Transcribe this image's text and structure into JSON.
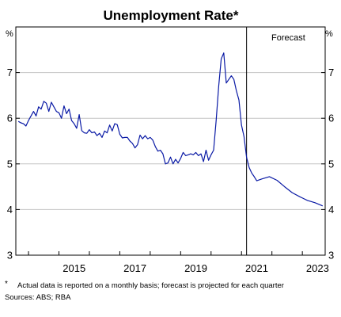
{
  "chart_data": {
    "type": "line",
    "title": "Unemployment Rate*",
    "y_unit_left": "%",
    "y_unit_right": "%",
    "ylim": [
      3,
      8
    ],
    "yticks": [
      3,
      4,
      5,
      6,
      7
    ],
    "x_range": [
      "2013-08",
      "2023-10"
    ],
    "xticks": [
      "2015",
      "2017",
      "2019",
      "2021",
      "2023"
    ],
    "forecast_start": "2021-03",
    "forecast_label": "Forecast",
    "grid": true,
    "series": [
      {
        "color": "#0a1aa5",
        "data": [
          [
            "2013-09",
            5.93
          ],
          [
            "2013-10",
            5.9
          ],
          [
            "2013-11",
            5.88
          ],
          [
            "2013-12",
            5.83
          ],
          [
            "2014-01",
            5.95
          ],
          [
            "2014-02",
            6.05
          ],
          [
            "2014-03",
            6.15
          ],
          [
            "2014-04",
            6.05
          ],
          [
            "2014-05",
            6.25
          ],
          [
            "2014-06",
            6.2
          ],
          [
            "2014-07",
            6.37
          ],
          [
            "2014-08",
            6.33
          ],
          [
            "2014-09",
            6.15
          ],
          [
            "2014-10",
            6.35
          ],
          [
            "2014-11",
            6.25
          ],
          [
            "2014-12",
            6.15
          ],
          [
            "2015-01",
            6.12
          ],
          [
            "2015-02",
            6.0
          ],
          [
            "2015-03",
            6.27
          ],
          [
            "2015-04",
            6.1
          ],
          [
            "2015-05",
            6.2
          ],
          [
            "2015-06",
            5.95
          ],
          [
            "2015-07",
            5.88
          ],
          [
            "2015-08",
            5.78
          ],
          [
            "2015-09",
            6.08
          ],
          [
            "2015-10",
            5.73
          ],
          [
            "2015-11",
            5.68
          ],
          [
            "2015-12",
            5.67
          ],
          [
            "2016-01",
            5.75
          ],
          [
            "2016-02",
            5.68
          ],
          [
            "2016-03",
            5.7
          ],
          [
            "2016-04",
            5.62
          ],
          [
            "2016-05",
            5.67
          ],
          [
            "2016-06",
            5.58
          ],
          [
            "2016-07",
            5.72
          ],
          [
            "2016-08",
            5.68
          ],
          [
            "2016-09",
            5.85
          ],
          [
            "2016-10",
            5.72
          ],
          [
            "2016-11",
            5.88
          ],
          [
            "2016-12",
            5.86
          ],
          [
            "2017-01",
            5.65
          ],
          [
            "2017-02",
            5.57
          ],
          [
            "2017-03",
            5.58
          ],
          [
            "2017-04",
            5.58
          ],
          [
            "2017-05",
            5.5
          ],
          [
            "2017-06",
            5.45
          ],
          [
            "2017-07",
            5.35
          ],
          [
            "2017-08",
            5.42
          ],
          [
            "2017-09",
            5.63
          ],
          [
            "2017-10",
            5.55
          ],
          [
            "2017-11",
            5.62
          ],
          [
            "2017-12",
            5.55
          ],
          [
            "2018-01",
            5.58
          ],
          [
            "2018-02",
            5.52
          ],
          [
            "2018-03",
            5.38
          ],
          [
            "2018-04",
            5.28
          ],
          [
            "2018-05",
            5.3
          ],
          [
            "2018-06",
            5.22
          ],
          [
            "2018-07",
            5.0
          ],
          [
            "2018-08",
            5.02
          ],
          [
            "2018-09",
            5.15
          ],
          [
            "2018-10",
            5.0
          ],
          [
            "2018-11",
            5.1
          ],
          [
            "2018-12",
            5.02
          ],
          [
            "2019-01",
            5.12
          ],
          [
            "2019-02",
            5.25
          ],
          [
            "2019-03",
            5.18
          ],
          [
            "2019-04",
            5.2
          ],
          [
            "2019-05",
            5.22
          ],
          [
            "2019-06",
            5.2
          ],
          [
            "2019-07",
            5.25
          ],
          [
            "2019-08",
            5.18
          ],
          [
            "2019-09",
            5.22
          ],
          [
            "2019-10",
            5.05
          ],
          [
            "2019-11",
            5.3
          ],
          [
            "2019-12",
            5.08
          ],
          [
            "2020-01",
            5.2
          ],
          [
            "2020-02",
            5.3
          ],
          [
            "2020-03",
            5.95
          ],
          [
            "2020-04",
            6.7
          ],
          [
            "2020-05",
            7.3
          ],
          [
            "2020-06",
            7.43
          ],
          [
            "2020-07",
            6.77
          ],
          [
            "2020-08",
            6.85
          ],
          [
            "2020-09",
            6.93
          ],
          [
            "2020-10",
            6.85
          ],
          [
            "2020-11",
            6.6
          ],
          [
            "2020-12",
            6.4
          ],
          [
            "2021-01",
            5.85
          ],
          [
            "2021-02",
            5.6
          ],
          [
            "2021-03",
            5.15
          ],
          [
            "2021-04",
            4.92
          ],
          [
            "2021-05",
            4.8
          ],
          [
            "2021-06",
            4.72
          ],
          [
            "2021-07",
            4.63
          ],
          [
            "2021-09",
            4.67
          ],
          [
            "2021-12",
            4.72
          ],
          [
            "2022-03",
            4.64
          ],
          [
            "2022-06",
            4.5
          ],
          [
            "2022-09",
            4.37
          ],
          [
            "2022-12",
            4.28
          ],
          [
            "2023-03",
            4.2
          ],
          [
            "2023-06",
            4.15
          ],
          [
            "2023-09",
            4.08
          ]
        ]
      }
    ]
  },
  "notes": {
    "marker": "*",
    "footnote": "Actual data is reported on a monthly basis; forecast is projected for each quarter",
    "sources": "Sources: ABS; RBA"
  }
}
